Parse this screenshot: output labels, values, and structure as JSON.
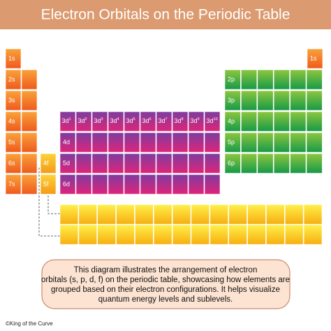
{
  "header": {
    "title": "Electron Orbitals on the Periodic Table"
  },
  "s_block": {
    "left": [
      "1s",
      "2s",
      "3s",
      "4s",
      "5s",
      "6s",
      "7s"
    ],
    "right": "1s"
  },
  "d_block": {
    "first_row": [
      {
        "base": "3d",
        "sup": "1"
      },
      {
        "base": "3d",
        "sup": "2"
      },
      {
        "base": "3d",
        "sup": "3"
      },
      {
        "base": "3d",
        "sup": "4"
      },
      {
        "base": "3d",
        "sup": "5"
      },
      {
        "base": "3d",
        "sup": "6"
      },
      {
        "base": "3d",
        "sup": "7"
      },
      {
        "base": "3d",
        "sup": "8"
      },
      {
        "base": "3d",
        "sup": "9"
      },
      {
        "base": "3d",
        "sup": "10"
      }
    ],
    "rows": [
      "4d",
      "5d",
      "6d"
    ]
  },
  "f_block": {
    "labels": [
      "4f",
      "5f"
    ]
  },
  "p_block": {
    "labels": [
      "2p",
      "3p",
      "4p",
      "5p",
      "6p"
    ]
  },
  "description": {
    "lines": [
      "This diagram illustrates the arrangement of electron",
      "orbitals (s, p, d, f) on the periodic table, showcasing how elements are",
      "grouped based on their electron configurations. It helps visualize",
      "quantum energy levels and sublevels."
    ]
  },
  "footer": "©King of the Curve"
}
